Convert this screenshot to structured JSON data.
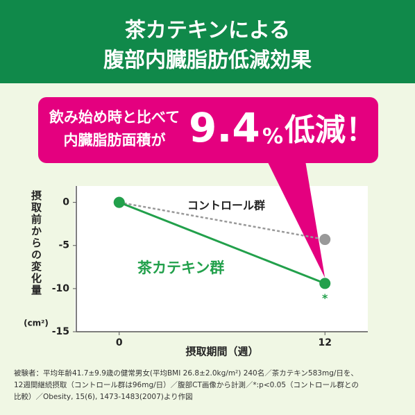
{
  "header": {
    "title_line1": "茶カテキンによる",
    "title_line2": "腹部内臓脂肪低減効果"
  },
  "callout": {
    "line1": "飲み始め時と比べて",
    "line2": "内臓脂肪面積が",
    "value": 9.4,
    "unit": "%",
    "suffix": "低減！"
  },
  "chart_data": {
    "type": "line",
    "ylabel": "摂取前からの変化量",
    "yunit": "(cm²)",
    "xlabel": "摂取期間（週）",
    "x": [
      0,
      12
    ],
    "xlim": [
      -2.5,
      14.5
    ],
    "xticks": [
      0,
      12
    ],
    "ylim": [
      -15,
      1.9
    ],
    "yticks": [
      0,
      -5,
      -10,
      -15
    ],
    "grid": false,
    "series": [
      {
        "name": "コントロール群",
        "color": "#999999",
        "dashed": true,
        "values": [
          0,
          -4.3
        ]
      },
      {
        "name": "茶カテキン群",
        "color": "#22a04b",
        "dashed": false,
        "values": [
          0,
          -9.4
        ],
        "annotation": "*"
      }
    ]
  },
  "footnote": [
    "被験者：平均年齢41.7±9.9歳の健常男女(平均BMI 26.8±2.0kg/m²) 240名／茶カテキン583mg/日を、",
    "12週間継続摂取（コントロール群は96mg/日）／腹部CT画像から計測／*:p<0.05（コントロール群との",
    "比較）／Obesity, 15(6), 1473-1483(2007)より作図"
  ]
}
